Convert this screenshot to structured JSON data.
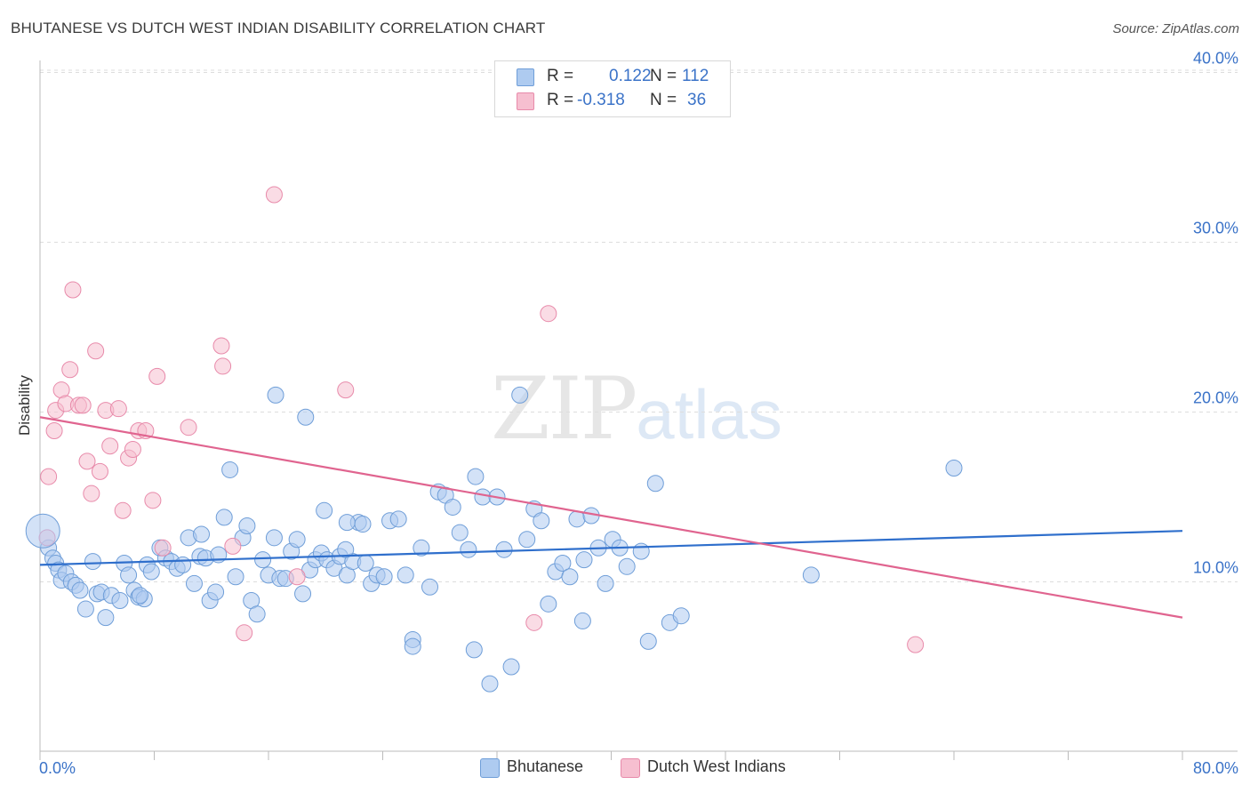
{
  "title": "BHUTANESE VS DUTCH WEST INDIAN DISABILITY CORRELATION CHART",
  "source": "Source: ZipAtlas.com",
  "watermark": {
    "zip": "ZIP",
    "atlas": "atlas"
  },
  "colors": {
    "blue_fill": "#aecbf0",
    "blue_stroke": "#6f9ed8",
    "blue_line": "#2f6fcc",
    "pink_fill": "#f6bfd0",
    "pink_stroke": "#e88aaa",
    "pink_line": "#e0648f",
    "axis_text": "#3b73c8",
    "grid": "#dddddd"
  },
  "legend_top": {
    "rows": [
      {
        "r_label": "R =",
        "r_value": "0.122",
        "n_label": "N =",
        "n_value": "112"
      },
      {
        "r_label": "R =",
        "r_value": "-0.318",
        "n_label": "N =",
        "n_value": "36"
      }
    ]
  },
  "legend_bottom": [
    "Bhutanese",
    "Dutch West Indians"
  ],
  "chart_data": {
    "type": "scatter",
    "title": "BHUTANESE VS DUTCH WEST INDIAN DISABILITY CORRELATION CHART",
    "xlabel": "",
    "ylabel": "Disability",
    "xlim": [
      0,
      80
    ],
    "ylim": [
      0,
      42
    ],
    "x_tick_labels": [
      "0.0%",
      "80.0%"
    ],
    "y_ticks": [
      10,
      20,
      30,
      40
    ],
    "y_tick_labels": [
      "10.0%",
      "20.0%",
      "30.0%",
      "40.0%"
    ],
    "grid": true,
    "series": [
      {
        "name": "Bhutanese",
        "R": 0.122,
        "N": 112,
        "trend": {
          "x": [
            0,
            80
          ],
          "y": [
            11.0,
            13.0
          ]
        },
        "points": [
          [
            0.6,
            12.0
          ],
          [
            0.9,
            11.4
          ],
          [
            1.1,
            11.1
          ],
          [
            1.3,
            10.7
          ],
          [
            1.5,
            10.1
          ],
          [
            1.8,
            10.5
          ],
          [
            2.2,
            10.0
          ],
          [
            2.5,
            9.8
          ],
          [
            2.8,
            9.5
          ],
          [
            3.2,
            8.4
          ],
          [
            3.7,
            11.2
          ],
          [
            4.0,
            9.3
          ],
          [
            4.3,
            9.4
          ],
          [
            4.6,
            7.9
          ],
          [
            5.0,
            9.2
          ],
          [
            5.6,
            8.9
          ],
          [
            5.9,
            11.1
          ],
          [
            6.2,
            10.4
          ],
          [
            6.6,
            9.5
          ],
          [
            6.9,
            9.1
          ],
          [
            7.3,
            9.0
          ],
          [
            7.0,
            9.2
          ],
          [
            7.5,
            11.0
          ],
          [
            7.8,
            10.6
          ],
          [
            8.4,
            12.0
          ],
          [
            8.8,
            11.4
          ],
          [
            9.2,
            11.2
          ],
          [
            9.6,
            10.8
          ],
          [
            10.0,
            11.0
          ],
          [
            10.4,
            12.6
          ],
          [
            10.8,
            9.9
          ],
          [
            11.2,
            11.5
          ],
          [
            11.6,
            11.4
          ],
          [
            11.3,
            12.8
          ],
          [
            11.9,
            8.9
          ],
          [
            12.3,
            9.4
          ],
          [
            12.5,
            11.6
          ],
          [
            12.9,
            13.8
          ],
          [
            13.3,
            16.6
          ],
          [
            13.7,
            10.3
          ],
          [
            14.2,
            12.6
          ],
          [
            14.5,
            13.3
          ],
          [
            14.8,
            8.9
          ],
          [
            15.2,
            8.1
          ],
          [
            15.6,
            11.3
          ],
          [
            16.0,
            10.4
          ],
          [
            16.4,
            12.6
          ],
          [
            16.8,
            10.2
          ],
          [
            17.2,
            10.2
          ],
          [
            17.6,
            11.8
          ],
          [
            18.0,
            12.5
          ],
          [
            18.4,
            9.3
          ],
          [
            18.9,
            10.7
          ],
          [
            19.3,
            11.3
          ],
          [
            19.7,
            11.7
          ],
          [
            20.1,
            11.3
          ],
          [
            20.6,
            10.8
          ],
          [
            21.0,
            11.5
          ],
          [
            21.5,
            10.4
          ],
          [
            21.9,
            11.2
          ],
          [
            22.3,
            13.5
          ],
          [
            22.8,
            11.1
          ],
          [
            23.2,
            9.9
          ],
          [
            23.6,
            10.4
          ],
          [
            24.1,
            10.3
          ],
          [
            24.5,
            13.6
          ],
          [
            25.1,
            13.7
          ],
          [
            25.6,
            10.4
          ],
          [
            26.1,
            6.6
          ],
          [
            26.7,
            12.0
          ],
          [
            27.3,
            9.7
          ],
          [
            27.9,
            15.3
          ],
          [
            28.4,
            15.1
          ],
          [
            28.9,
            14.4
          ],
          [
            29.4,
            12.9
          ],
          [
            30.0,
            11.9
          ],
          [
            30.5,
            16.2
          ],
          [
            31.0,
            15.0
          ],
          [
            31.5,
            4.0
          ],
          [
            32.0,
            15.0
          ],
          [
            32.5,
            11.9
          ],
          [
            33.0,
            5.0
          ],
          [
            33.6,
            21.0
          ],
          [
            34.1,
            12.5
          ],
          [
            34.6,
            14.3
          ],
          [
            35.1,
            13.6
          ],
          [
            35.6,
            8.7
          ],
          [
            36.1,
            10.6
          ],
          [
            36.6,
            11.1
          ],
          [
            37.1,
            10.3
          ],
          [
            37.6,
            13.7
          ],
          [
            38.1,
            11.3
          ],
          [
            38.6,
            13.9
          ],
          [
            39.1,
            12.0
          ],
          [
            39.6,
            9.9
          ],
          [
            40.1,
            12.5
          ],
          [
            40.6,
            12.0
          ],
          [
            41.1,
            10.9
          ],
          [
            42.1,
            11.8
          ],
          [
            42.6,
            6.5
          ],
          [
            43.1,
            15.8
          ],
          [
            44.1,
            7.6
          ],
          [
            44.9,
            8.0
          ],
          [
            16.5,
            21.0
          ],
          [
            18.6,
            19.7
          ],
          [
            21.5,
            13.5
          ],
          [
            19.9,
            14.2
          ],
          [
            21.4,
            11.9
          ],
          [
            26.1,
            6.2
          ],
          [
            30.4,
            6.0
          ],
          [
            38.0,
            7.7
          ],
          [
            54.0,
            10.4
          ],
          [
            64.0,
            16.7
          ],
          [
            22.6,
            13.4
          ]
        ]
      },
      {
        "name": "Dutch West Indians",
        "R": -0.318,
        "N": 36,
        "trend": {
          "x": [
            0,
            80
          ],
          "y": [
            19.7,
            7.9
          ]
        },
        "points": [
          [
            0.5,
            12.6
          ],
          [
            0.6,
            16.2
          ],
          [
            1.0,
            18.9
          ],
          [
            1.1,
            20.1
          ],
          [
            1.5,
            21.3
          ],
          [
            1.8,
            20.5
          ],
          [
            2.1,
            22.5
          ],
          [
            2.3,
            27.2
          ],
          [
            2.7,
            20.4
          ],
          [
            3.0,
            20.4
          ],
          [
            3.3,
            17.1
          ],
          [
            3.6,
            15.2
          ],
          [
            3.9,
            23.6
          ],
          [
            4.2,
            16.5
          ],
          [
            4.6,
            20.1
          ],
          [
            4.9,
            18.0
          ],
          [
            5.5,
            20.2
          ],
          [
            5.8,
            14.2
          ],
          [
            6.2,
            17.3
          ],
          [
            6.5,
            17.8
          ],
          [
            6.9,
            18.9
          ],
          [
            7.4,
            18.9
          ],
          [
            7.9,
            14.8
          ],
          [
            8.2,
            22.1
          ],
          [
            8.6,
            12.0
          ],
          [
            10.4,
            19.1
          ],
          [
            12.7,
            23.9
          ],
          [
            12.8,
            22.7
          ],
          [
            13.5,
            12.1
          ],
          [
            14.3,
            7.0
          ],
          [
            16.4,
            32.8
          ],
          [
            18.0,
            10.3
          ],
          [
            21.4,
            21.3
          ],
          [
            34.6,
            7.6
          ],
          [
            35.6,
            25.8
          ],
          [
            61.3,
            6.3
          ]
        ]
      }
    ]
  }
}
